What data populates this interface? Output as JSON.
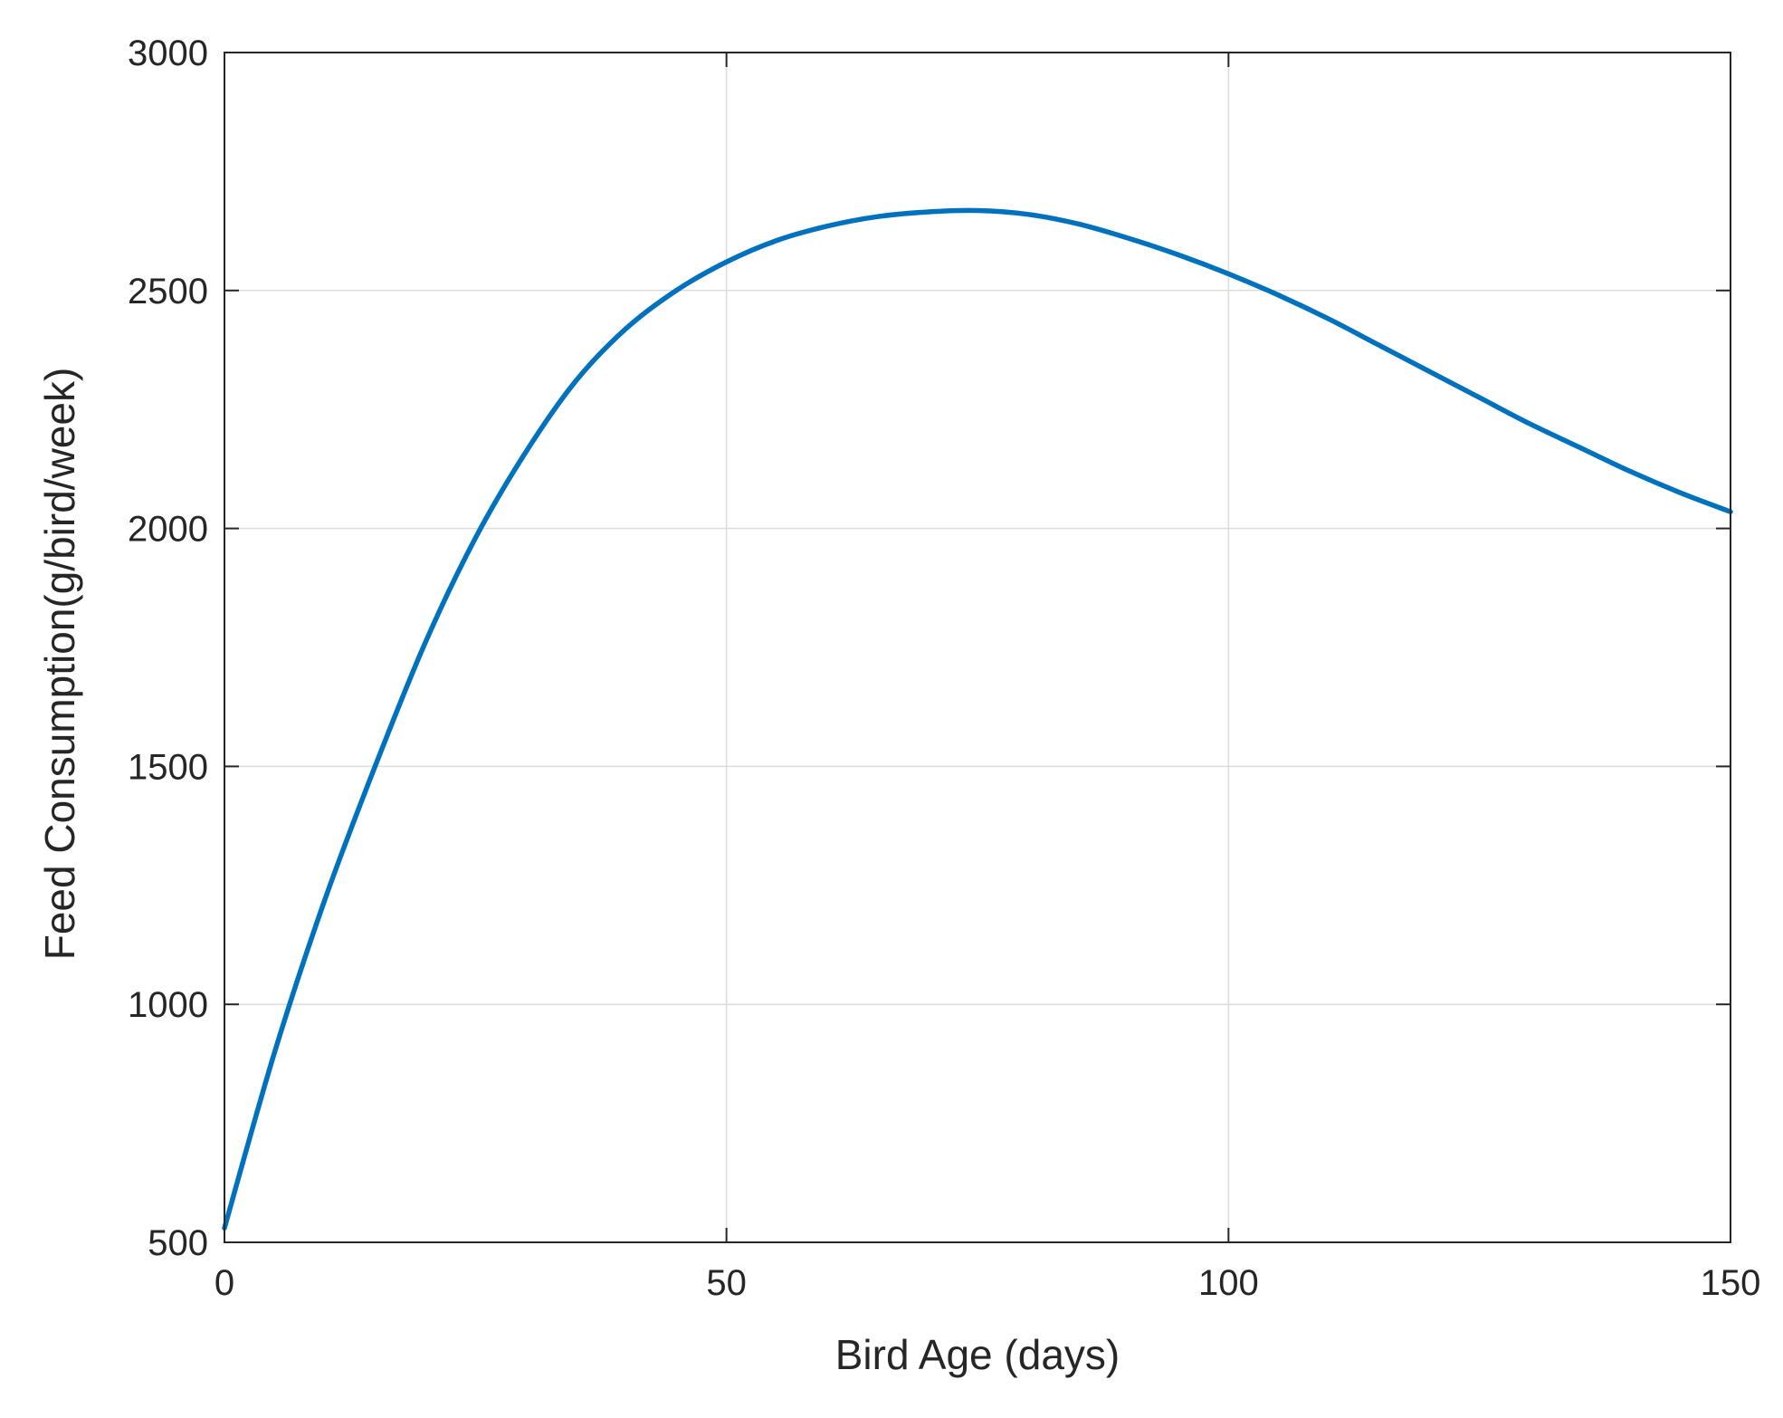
{
  "chart_data": {
    "type": "line",
    "title": "",
    "xlabel": "Bird Age (days)",
    "ylabel": "Feed Consumption(g/bird/week)",
    "xlim": [
      0,
      150
    ],
    "ylim": [
      500,
      3000
    ],
    "xticks": [
      0,
      50,
      100,
      150
    ],
    "yticks": [
      500,
      1000,
      1500,
      2000,
      2500,
      3000
    ],
    "xtick_labels": [
      "0",
      "50",
      "100",
      "150"
    ],
    "ytick_labels": [
      "500",
      "1000",
      "1500",
      "2000",
      "2500",
      "3000"
    ],
    "grid": true,
    "legend": "none",
    "series": [
      {
        "color": "#0072BD",
        "x": [
          0,
          5,
          10,
          15,
          20,
          25,
          30,
          35,
          40,
          45,
          50,
          55,
          60,
          65,
          70,
          75,
          80,
          85,
          90,
          95,
          100,
          105,
          110,
          115,
          120,
          125,
          130,
          135,
          140,
          145,
          150
        ],
        "y": [
          530,
          900,
          1220,
          1500,
          1760,
          1980,
          2160,
          2310,
          2420,
          2500,
          2560,
          2605,
          2635,
          2655,
          2665,
          2668,
          2660,
          2640,
          2610,
          2575,
          2535,
          2490,
          2440,
          2385,
          2330,
          2275,
          2220,
          2170,
          2120,
          2075,
          2035
        ]
      }
    ]
  }
}
